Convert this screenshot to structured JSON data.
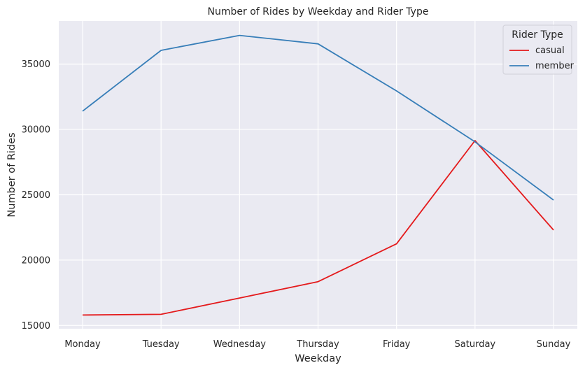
{
  "chart_data": {
    "type": "line",
    "title": "Number of Rides by Weekday and Rider Type",
    "xlabel": "Weekday",
    "ylabel": "Number of Rides",
    "categories": [
      "Monday",
      "Tuesday",
      "Wednesday",
      "Thursday",
      "Friday",
      "Saturday",
      "Sunday"
    ],
    "series": [
      {
        "name": "casual",
        "color": "#e41a1c",
        "values": [
          15800,
          15850,
          17100,
          18350,
          21250,
          29150,
          22300
        ]
      },
      {
        "name": "member",
        "color": "#377eb8",
        "values": [
          31400,
          36050,
          37200,
          36550,
          32950,
          29050,
          24600
        ]
      }
    ],
    "yticks": [
      15000,
      20000,
      25000,
      30000,
      35000
    ],
    "ylim": [
      14750,
      38300
    ],
    "grid": true,
    "background": "#eaeaf2",
    "legend": {
      "title": "Rider Type",
      "placement": "top-right"
    }
  }
}
